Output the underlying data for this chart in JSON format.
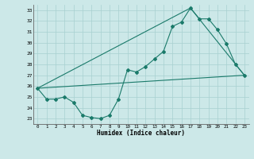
{
  "xlabel": "Humidex (Indice chaleur)",
  "ylabel": "",
  "bg_color": "#cce8e8",
  "line_color": "#1a7a6a",
  "xlim": [
    -0.5,
    23.5
  ],
  "ylim": [
    22.5,
    33.5
  ],
  "yticks": [
    23,
    24,
    25,
    26,
    27,
    28,
    29,
    30,
    31,
    32,
    33
  ],
  "xticks": [
    0,
    1,
    2,
    3,
    4,
    5,
    6,
    7,
    8,
    9,
    10,
    11,
    12,
    13,
    14,
    15,
    16,
    17,
    18,
    19,
    20,
    21,
    22,
    23
  ],
  "line1_x": [
    0,
    1,
    2,
    3,
    4,
    5,
    6,
    7,
    8,
    9,
    10,
    11,
    12,
    13,
    14,
    15,
    16,
    17,
    18,
    19,
    20,
    21,
    22,
    23
  ],
  "line1_y": [
    25.8,
    24.8,
    24.8,
    25.0,
    24.5,
    23.3,
    23.1,
    23.0,
    23.3,
    24.8,
    27.5,
    27.3,
    27.8,
    28.5,
    29.2,
    31.5,
    31.9,
    33.2,
    32.2,
    32.2,
    31.2,
    29.9,
    28.0,
    27.0
  ],
  "line2_x": [
    0,
    23
  ],
  "line2_y": [
    25.8,
    27.0
  ],
  "line3_x": [
    0,
    17,
    23
  ],
  "line3_y": [
    25.8,
    33.2,
    27.0
  ]
}
